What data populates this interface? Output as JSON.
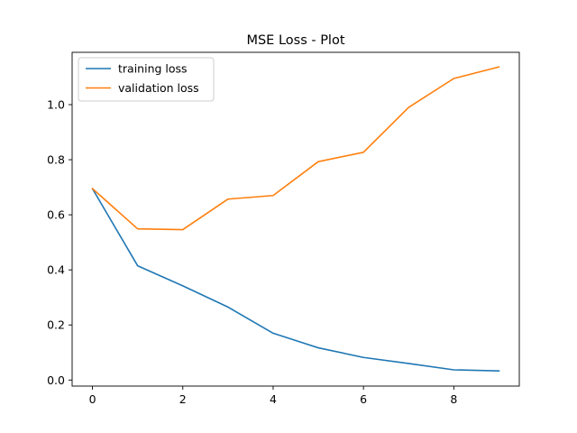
{
  "chart_data": {
    "type": "line",
    "title": "MSE Loss - Plot",
    "xlabel": "",
    "ylabel": "",
    "x": [
      0,
      1,
      2,
      3,
      4,
      5,
      6,
      7,
      8,
      9
    ],
    "xlim": [
      -0.45,
      9.45
    ],
    "ylim": [
      -0.022,
      1.19
    ],
    "xticks": [
      0,
      2,
      4,
      6,
      8
    ],
    "yticks": [
      0.0,
      0.2,
      0.4,
      0.6,
      0.8,
      1.0
    ],
    "xtick_labels": [
      "0",
      "2",
      "4",
      "6",
      "8"
    ],
    "ytick_labels": [
      "0.0",
      "0.2",
      "0.4",
      "0.6",
      "0.8",
      "1.0"
    ],
    "grid": false,
    "legend_position": "top-left",
    "series": [
      {
        "name": "training loss",
        "color": "#1f77b4",
        "values": [
          0.695,
          0.415,
          0.342,
          0.265,
          0.17,
          0.117,
          0.082,
          0.06,
          0.037,
          0.033
        ]
      },
      {
        "name": "validation loss",
        "color": "#ff7f0e",
        "values": [
          0.695,
          0.549,
          0.546,
          0.657,
          0.67,
          0.793,
          0.827,
          0.99,
          1.095,
          1.137
        ]
      }
    ]
  }
}
